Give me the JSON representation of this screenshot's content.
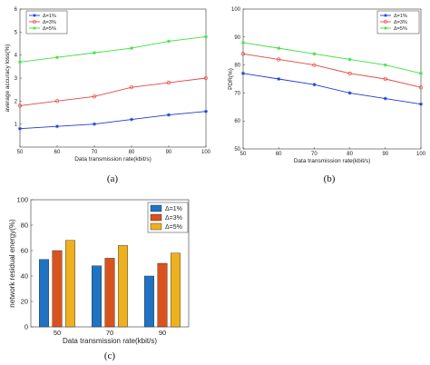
{
  "chart_data": [
    {
      "type": "line",
      "panel_label": "(a)",
      "xlabel": "Data transmission rate(kbit/s)",
      "ylabel": "average accuracy loss(%)",
      "xlim": [
        50,
        100
      ],
      "ylim": [
        0,
        6
      ],
      "x_ticks": [
        50,
        60,
        70,
        80,
        90,
        100
      ],
      "y_ticks": [
        1,
        2,
        3,
        4,
        5,
        6
      ],
      "grid": false,
      "legend_position": "top-left",
      "series": [
        {
          "name": "Δ=1%",
          "color": "#1f3bd6",
          "marker": "star",
          "x": [
            50,
            60,
            70,
            80,
            90,
            100
          ],
          "values": [
            0.8,
            0.9,
            1.0,
            1.2,
            1.4,
            1.55
          ]
        },
        {
          "name": "Δ=3%",
          "color": "#e8463c",
          "marker": "circle",
          "x": [
            50,
            60,
            70,
            80,
            90,
            100
          ],
          "values": [
            1.8,
            2.0,
            2.2,
            2.6,
            2.8,
            3.0
          ]
        },
        {
          "name": "Δ=5%",
          "color": "#3fe03f",
          "marker": "star",
          "x": [
            50,
            60,
            70,
            80,
            90,
            100
          ],
          "values": [
            3.7,
            3.9,
            4.1,
            4.3,
            4.6,
            4.8
          ]
        }
      ]
    },
    {
      "type": "line",
      "panel_label": "(b)",
      "xlabel": "Data transmission rate(kbit/s)",
      "ylabel": "PDR(%)",
      "xlim": [
        50,
        100
      ],
      "ylim": [
        50,
        100
      ],
      "x_ticks": [
        50,
        60,
        70,
        80,
        90,
        100
      ],
      "y_ticks": [
        50,
        60,
        70,
        80,
        90,
        100
      ],
      "grid": false,
      "legend_position": "top-right",
      "series": [
        {
          "name": "Δ=1%",
          "color": "#1f3bd6",
          "marker": "star",
          "x": [
            50,
            60,
            70,
            80,
            90,
            100
          ],
          "values": [
            77,
            75,
            73,
            70,
            68,
            66
          ]
        },
        {
          "name": "Δ=3%",
          "color": "#e8463c",
          "marker": "circle",
          "x": [
            50,
            60,
            70,
            80,
            90,
            100
          ],
          "values": [
            84,
            82,
            80,
            77,
            75,
            72
          ]
        },
        {
          "name": "Δ=5%",
          "color": "#3fe03f",
          "marker": "star",
          "x": [
            50,
            60,
            70,
            80,
            90,
            100
          ],
          "values": [
            88,
            86,
            84,
            82,
            80,
            77
          ]
        }
      ]
    },
    {
      "type": "bar",
      "panel_label": "(c)",
      "xlabel": "Data transmission rate(kbit/s)",
      "ylabel": "network residual energy(%)",
      "categories": [
        "50",
        "70",
        "90"
      ],
      "ylim": [
        0,
        100
      ],
      "y_ticks": [
        0,
        20,
        40,
        60,
        80,
        100
      ],
      "grid": false,
      "legend_position": "top-right",
      "series": [
        {
          "name": "Δ=1%",
          "color": "#1f73c2",
          "values": [
            53,
            48,
            40
          ]
        },
        {
          "name": "Δ=3%",
          "color": "#d9531e",
          "values": [
            60,
            54,
            50
          ]
        },
        {
          "name": "Δ=5%",
          "color": "#edb120",
          "values": [
            68,
            64,
            58
          ]
        }
      ]
    }
  ]
}
